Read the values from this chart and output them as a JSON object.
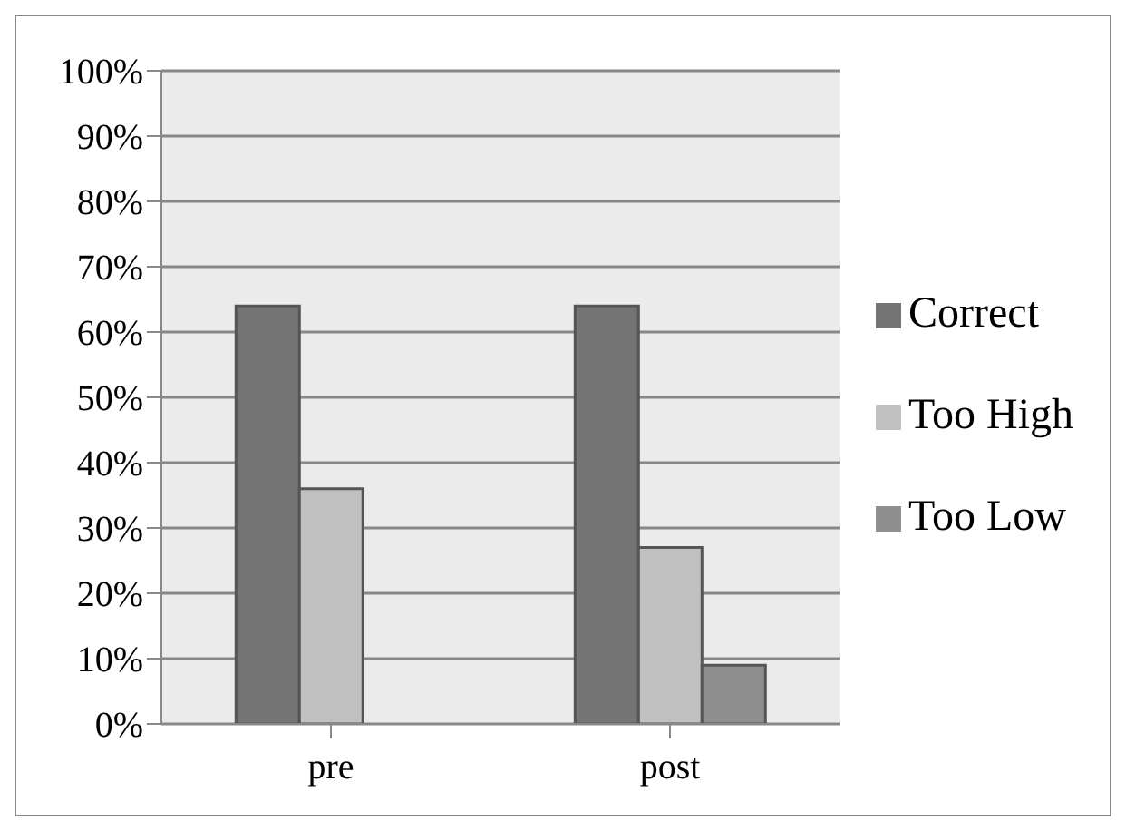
{
  "chart_data": {
    "type": "bar",
    "categories": [
      "pre",
      "post"
    ],
    "series": [
      {
        "name": "Correct",
        "color": "#747474",
        "values": [
          64,
          64
        ]
      },
      {
        "name": "Too High",
        "color": "#c0c0c0",
        "values": [
          36,
          27
        ]
      },
      {
        "name": "Too Low",
        "color": "#8e8e8e",
        "values": [
          0,
          9
        ]
      }
    ],
    "ylim": [
      0,
      100
    ],
    "yticks": [
      {
        "value": 0,
        "label": "0%"
      },
      {
        "value": 10,
        "label": "10%"
      },
      {
        "value": 20,
        "label": "20%"
      },
      {
        "value": 30,
        "label": "30%"
      },
      {
        "value": 40,
        "label": "40%"
      },
      {
        "value": 50,
        "label": "50%"
      },
      {
        "value": 60,
        "label": "60%"
      },
      {
        "value": 70,
        "label": "70%"
      },
      {
        "value": 80,
        "label": "80%"
      },
      {
        "value": 90,
        "label": "90%"
      },
      {
        "value": 100,
        "label": "100%"
      }
    ],
    "grid": "y",
    "legend": "right"
  }
}
